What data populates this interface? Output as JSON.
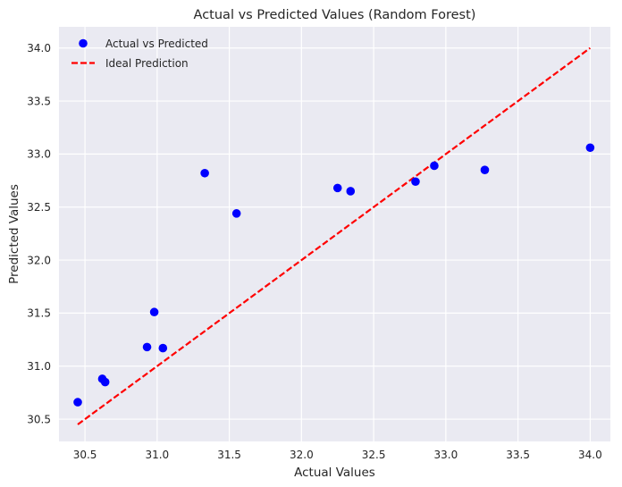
{
  "chart_data": {
    "type": "scatter",
    "title": "Actual vs Predicted Values (Random Forest)",
    "xlabel": "Actual Values",
    "ylabel": "Predicted Values",
    "xlim": [
      30.32,
      34.14
    ],
    "ylim": [
      30.29,
      34.2
    ],
    "xticks": [
      30.5,
      31.0,
      31.5,
      32.0,
      32.5,
      33.0,
      33.5,
      34.0
    ],
    "xtick_labels": [
      "30.5",
      "31.0",
      "31.5",
      "32.0",
      "32.5",
      "33.0",
      "33.5",
      "34.0"
    ],
    "yticks": [
      30.5,
      31.0,
      31.5,
      32.0,
      32.5,
      33.0,
      33.5,
      34.0
    ],
    "ytick_labels": [
      "30.5",
      "31.0",
      "31.5",
      "32.0",
      "32.5",
      "33.0",
      "33.5",
      "34.0"
    ],
    "grid": true,
    "legend_position": "top-left",
    "series": [
      {
        "name": "Actual vs Predicted",
        "kind": "scatter",
        "color": "#0000ff",
        "points": [
          {
            "x": 30.45,
            "y": 30.66
          },
          {
            "x": 30.62,
            "y": 30.88
          },
          {
            "x": 30.64,
            "y": 30.85
          },
          {
            "x": 30.93,
            "y": 31.18
          },
          {
            "x": 30.98,
            "y": 31.51
          },
          {
            "x": 31.04,
            "y": 31.17
          },
          {
            "x": 31.33,
            "y": 32.82
          },
          {
            "x": 31.55,
            "y": 32.44
          },
          {
            "x": 32.25,
            "y": 32.68
          },
          {
            "x": 32.34,
            "y": 32.65
          },
          {
            "x": 32.79,
            "y": 32.74
          },
          {
            "x": 32.92,
            "y": 32.89
          },
          {
            "x": 33.27,
            "y": 32.85
          },
          {
            "x": 34.0,
            "y": 33.06
          }
        ]
      },
      {
        "name": "Ideal Prediction",
        "kind": "line",
        "style": "dashed",
        "color": "#ff0000",
        "points": [
          {
            "x": 30.45,
            "y": 30.45
          },
          {
            "x": 34.0,
            "y": 34.0
          }
        ]
      }
    ]
  }
}
